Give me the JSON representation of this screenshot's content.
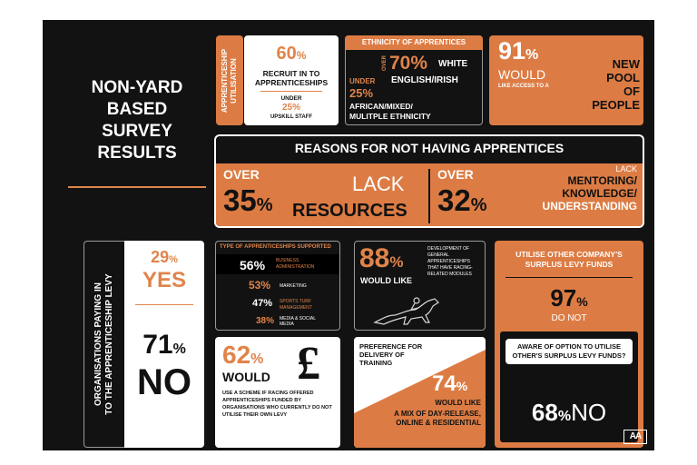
{
  "title": {
    "lines": [
      "NON-YARD",
      "BASED",
      "SURVEY",
      "RESULTS"
    ]
  },
  "utilisation": {
    "side_label": "APPRENTICESHIP UTILISATION",
    "pct": "60",
    "pct_sign": "%",
    "line1": "RECRUIT IN TO",
    "line2": "APPRENTICESHIPS",
    "under": "UNDER",
    "under_pct": "25%",
    "upskill": "UPSKILL STAFF"
  },
  "ethnicity": {
    "title": "ETHNICITY OF APPRENTICES",
    "over": "OVER",
    "pct1": "70%",
    "group1_a": "WHITE",
    "group1_b": "ENGLISH/IRISH",
    "under": "UNDER",
    "pct2": "25%",
    "group2_a": "AFRICAN/MIXED/",
    "group2_b": "MULITPLE ETHNICITY"
  },
  "newpool": {
    "pct": "91",
    "pct_sign": "%",
    "would": "WOULD",
    "sub": "LIKE ACCESS TO A",
    "line1": "NEW",
    "line2": "POOL",
    "line3": "OF",
    "line4": "PEOPLE"
  },
  "reasons": {
    "title": "REASONS FOR NOT HAVING APPRENTICES",
    "left_over": "OVER",
    "left_pct": "35",
    "left_sign": "%",
    "left_lack": "LACK",
    "left_what": "RESOURCES",
    "right_over": "OVER",
    "right_pct": "32",
    "right_sign": "%",
    "right_l1": "LACK",
    "right_l2": "MENTORING/",
    "right_l3": "KNOWLEDGE/",
    "right_l4": "UNDERSTANDING"
  },
  "levy": {
    "side_label1": "ORGANISATIONS PAYING IN",
    "side_label2": "TO THE APPRENTICESHIP LEVY",
    "yes_pct": "29",
    "yes_sign": "%",
    "yes": "YES",
    "no_pct": "71",
    "no_sign": "%",
    "no": "NO"
  },
  "types": {
    "title": "TYPE OF APPRENTICESHIPS SUPPORTED",
    "rows": [
      {
        "pct": "56%",
        "label": "BUSINESS ADMINISTRATION"
      },
      {
        "pct": "53%",
        "label": "MARKETING"
      },
      {
        "pct": "47%",
        "label": "SPORTS TURF MANAGEMENT"
      },
      {
        "pct": "38%",
        "label": "MEDIA & SOCIAL MEDIA"
      }
    ]
  },
  "general": {
    "pct": "88",
    "pct_sign": "%",
    "would_like": "WOULD LIKE",
    "desc": "DEVELOPMENT OF GENERAL APPRENTICESHIPS THAT HAVE RACING-RELATED MODULES"
  },
  "surplus": {
    "title": "UTILISE OTHER COMPANY'S SURPLUS LEVY FUNDS",
    "pct": "97",
    "pct_sign": "%",
    "do_not": "DO NOT",
    "aware": "AWARE OF OPTION TO UTILISE OTHER'S SURPLUS LEVY FUNDS?",
    "no_pct": "68",
    "no_sign": "%",
    "no": "NO"
  },
  "scheme": {
    "pct": "62",
    "pct_sign": "%",
    "would": "WOULD",
    "currency": "£",
    "desc": "USE A SCHEME IF RACING OFFERED APPRENTICESHIPS FUNDED BY ORGANISATIONS WHO CURRENTLY DO NOT UTILISE THEIR OWN LEVY"
  },
  "delivery": {
    "title": "PREFERENCE FOR DELIVERY OF TRAINING",
    "pct": "74",
    "pct_sign": "%",
    "would_like": "WOULD LIKE",
    "desc": "A MIX OF DAY-RELEASE, ONLINE & RESIDENTIAL"
  },
  "logo": {
    "text": "AA"
  },
  "colors": {
    "accent": "#dc7c44",
    "background": "#121212",
    "panel_white": "#ffffff"
  }
}
